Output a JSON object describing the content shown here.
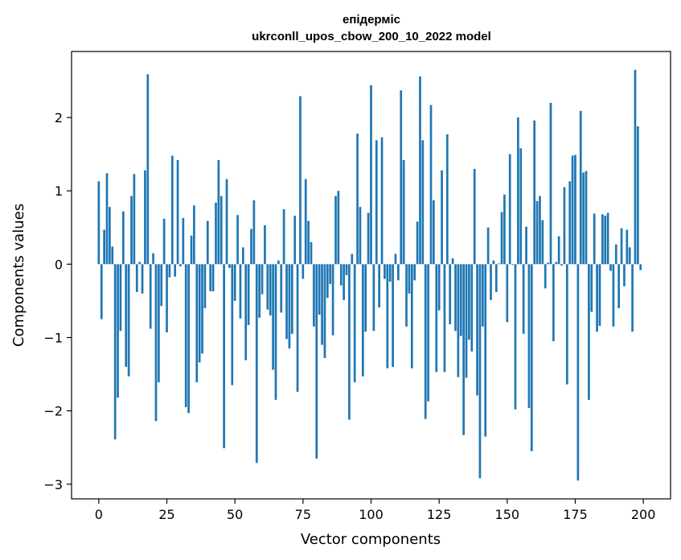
{
  "chart_data": {
    "type": "bar",
    "title": "епідерміс",
    "subtitle": "ukrconll_upos_cbow_200_10_2022 model",
    "xlabel": "Vector components",
    "ylabel": "Components values",
    "xlim": [
      -10,
      210
    ],
    "ylim": [
      -3.2,
      2.9
    ],
    "xticks": [
      0,
      25,
      50,
      75,
      100,
      125,
      150,
      175,
      200
    ],
    "xtick_labels": [
      "0",
      "25",
      "50",
      "75",
      "100",
      "125",
      "150",
      "175",
      "200"
    ],
    "yticks": [
      -3,
      -2,
      -1,
      0,
      1,
      2
    ],
    "ytick_labels": [
      "−3",
      "−2",
      "−1",
      "0",
      "1",
      "2"
    ],
    "grid": false,
    "bar_color": "#1f77b4",
    "values": [
      1.13,
      -0.75,
      0.47,
      1.24,
      0.78,
      0.24,
      -2.39,
      -1.82,
      -0.91,
      0.72,
      -1.4,
      -1.53,
      0.93,
      1.23,
      -0.38,
      0.03,
      -0.4,
      1.28,
      2.59,
      -0.88,
      0.15,
      -2.14,
      -1.61,
      -0.57,
      0.62,
      -0.93,
      -0.18,
      1.48,
      -0.17,
      1.42,
      -0.03,
      0.63,
      -1.95,
      -2.03,
      0.39,
      0.8,
      -1.61,
      -1.34,
      -1.22,
      -0.6,
      0.59,
      -0.37,
      -0.37,
      0.84,
      1.42,
      0.93,
      -2.51,
      1.16,
      -0.05,
      -1.65,
      -0.5,
      0.67,
      -0.74,
      0.23,
      -1.31,
      -0.83,
      0.48,
      0.87,
      -2.71,
      -0.73,
      -0.41,
      0.53,
      -0.62,
      -0.7,
      -1.44,
      -1.85,
      0.05,
      -0.66,
      0.75,
      -1.02,
      -1.15,
      -0.95,
      0.66,
      -1.74,
      2.29,
      -0.2,
      1.16,
      0.59,
      0.3,
      -0.85,
      -2.65,
      -0.69,
      -1.1,
      -1.28,
      -0.46,
      -0.27,
      -0.97,
      0.93,
      1.0,
      -0.29,
      -0.49,
      -0.15,
      -2.12,
      0.14,
      -1.61,
      1.78,
      0.78,
      -1.53,
      -0.92,
      0.7,
      2.44,
      -0.91,
      1.69,
      -0.59,
      1.73,
      -0.2,
      -1.42,
      -0.24,
      -1.4,
      0.14,
      -0.22,
      2.37,
      1.42,
      -0.85,
      -0.4,
      -1.42,
      -0.22,
      0.58,
      2.56,
      1.69,
      -2.11,
      -1.87,
      2.17,
      0.87,
      -1.47,
      -0.63,
      1.28,
      -1.47,
      1.77,
      -0.82,
      0.08,
      -0.91,
      -1.54,
      -0.98,
      -2.33,
      -1.55,
      -1.03,
      -1.19,
      1.3,
      -1.79,
      -2.92,
      -0.85,
      -2.35,
      0.5,
      -0.49,
      0.05,
      -0.38,
      0.01,
      0.71,
      0.95,
      -0.79,
      1.5,
      -0.01,
      -1.98,
      2.0,
      1.58,
      -0.95,
      0.51,
      -1.96,
      -2.55,
      1.96,
      0.86,
      0.93,
      0.6,
      -0.33,
      0.02,
      2.2,
      -1.05,
      0.03,
      0.38,
      -0.02,
      1.05,
      -1.64,
      1.13,
      1.48,
      1.49,
      -2.95,
      2.09,
      1.25,
      1.27,
      -1.85,
      -0.65,
      0.69,
      -0.92,
      -0.84,
      0.68,
      0.66,
      0.7,
      -0.09,
      -0.85,
      0.27,
      -0.6,
      0.49,
      -0.3,
      0.47,
      0.23,
      -0.92,
      2.65,
      1.88,
      -0.08
    ]
  }
}
